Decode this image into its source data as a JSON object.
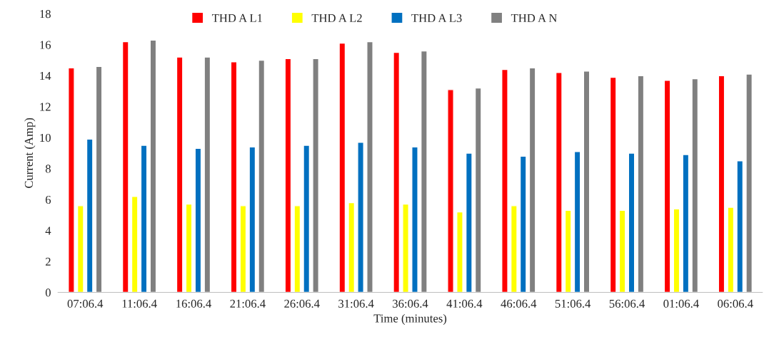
{
  "chart_data": {
    "type": "bar",
    "xlabel": "Time (minutes)",
    "ylabel": "Current (Amp)",
    "categories": [
      "07:06.4",
      "11:06.4",
      "16:06.4",
      "21:06.4",
      "26:06.4",
      "31:06.4",
      "36:06.4",
      "41:06.4",
      "46:06.4",
      "51:06.4",
      "56:06.4",
      "01:06.4",
      "06:06.4"
    ],
    "series": [
      {
        "name": "THD A L1",
        "color": "#ff0000",
        "values": [
          14.5,
          16.2,
          15.2,
          14.9,
          15.1,
          16.1,
          15.5,
          13.1,
          14.4,
          14.2,
          13.9,
          13.7,
          14.0
        ]
      },
      {
        "name": "THD A L2",
        "color": "#ffff00",
        "values": [
          5.6,
          6.2,
          5.7,
          5.6,
          5.6,
          5.8,
          5.7,
          5.2,
          5.6,
          5.3,
          5.3,
          5.4,
          5.5
        ]
      },
      {
        "name": "THD A L3",
        "color": "#0070c0",
        "values": [
          9.9,
          9.5,
          9.3,
          9.4,
          9.5,
          9.7,
          9.4,
          9.0,
          8.8,
          9.1,
          9.0,
          8.9,
          8.5
        ]
      },
      {
        "name": "THD A N",
        "color": "#808080",
        "values": [
          14.6,
          16.3,
          15.2,
          15.0,
          15.1,
          16.2,
          15.6,
          13.2,
          14.5,
          14.3,
          14.0,
          13.8,
          14.1
        ]
      }
    ],
    "ylim": [
      0,
      18
    ],
    "yticks": [
      0,
      2,
      4,
      6,
      8,
      10,
      12,
      14,
      16,
      18
    ],
    "grid": false,
    "legend": "top"
  }
}
